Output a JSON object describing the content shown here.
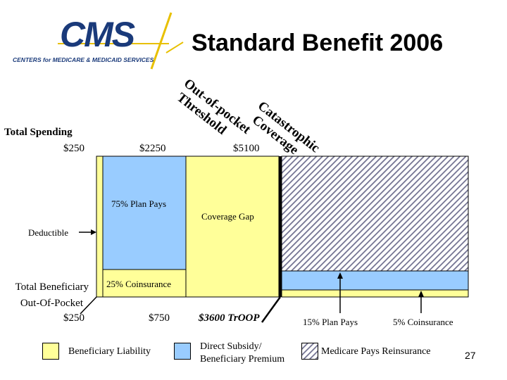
{
  "slide": {
    "title": "Standard Benefit 2006",
    "logo_text": "CMS",
    "logo_subtext": "CENTERS for MEDICARE & MEDICAID SERVICES",
    "page_number": "27"
  },
  "thresholds": {
    "oop_label_line1": "Out-of-pocket",
    "oop_label_line2": "Threshold",
    "cat_label_line1": "Catastrophic",
    "cat_label_line2": "Coverage"
  },
  "spending": {
    "label": "Total Spending",
    "deductible": "$250",
    "initial_limit": "$2250",
    "oop_limit": "$5100"
  },
  "regions": {
    "plan_pays": "75% Plan Pays",
    "coverage_gap": "Coverage Gap",
    "deductible": "Deductible",
    "coinsurance": "25% Coinsurance"
  },
  "beneficiary": {
    "label_line1": "Total Beneficiary",
    "label_line2": "Out-Of-Pocket",
    "deductible": "$250",
    "initial": "$750",
    "troop": "$3600 TrOOP"
  },
  "catastrophic": {
    "plan_pays": "15% Plan Pays",
    "coinsurance": "5% Coinsurance"
  },
  "legend": {
    "items": [
      {
        "label": "Beneficiary Liability",
        "color": "#ffff99"
      },
      {
        "label_line1": "Direct Subsidy/",
        "label_line2": "Beneficiary Premium",
        "color": "#99ccff"
      },
      {
        "label": "Medicare Pays Reinsurance",
        "color": "#8080a0"
      }
    ]
  },
  "colors": {
    "yellow": "#ffff99",
    "blue": "#99ccff",
    "hatch": "#707090",
    "logo_blue": "#1a3a7a",
    "logo_gold": "#e8c000"
  }
}
